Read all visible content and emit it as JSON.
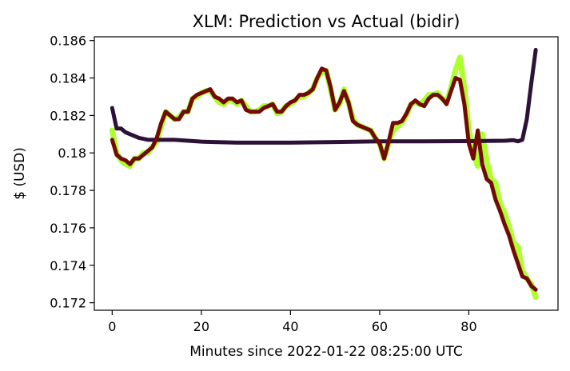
{
  "chart_data": {
    "type": "line",
    "title": "XLM: Prediction vs Actual (bidir)",
    "xlabel": "Minutes since 2022-01-22 08:25:00 UTC",
    "ylabel": "$ (USD)",
    "xlim": [
      -4,
      100
    ],
    "ylim": [
      0.1716,
      0.1862
    ],
    "grid": false,
    "legend": "none",
    "x_ticks": [
      0,
      20,
      40,
      60,
      80
    ],
    "y_ticks": [
      0.172,
      0.174,
      0.176,
      0.178,
      0.18,
      0.182,
      0.184,
      0.186
    ],
    "y_tick_labels": [
      "0.172",
      "0.174",
      "0.176",
      "0.178",
      "0.18",
      "0.182",
      "0.184",
      "0.186"
    ],
    "series": [
      {
        "color": "#adff2f",
        "width": 7,
        "points": [
          [
            0,
            0.1812
          ],
          [
            1,
            0.18
          ],
          [
            2,
            0.1796
          ],
          [
            3,
            0.1794
          ],
          [
            4,
            0.1793
          ],
          [
            5,
            0.1797
          ],
          [
            6,
            0.1797
          ],
          [
            7,
            0.18
          ],
          [
            8,
            0.18
          ],
          [
            9,
            0.1803
          ],
          [
            10,
            0.1806
          ],
          [
            11,
            0.1814
          ],
          [
            12,
            0.1822
          ],
          [
            13,
            0.182
          ],
          [
            14,
            0.1818
          ],
          [
            15,
            0.1819
          ],
          [
            16,
            0.1822
          ],
          [
            17,
            0.1822
          ],
          [
            18,
            0.1829
          ],
          [
            19,
            0.183
          ],
          [
            20,
            0.1832
          ],
          [
            21,
            0.1833
          ],
          [
            22,
            0.1833
          ],
          [
            23,
            0.183
          ],
          [
            24,
            0.1827
          ],
          [
            25,
            0.1826
          ],
          [
            26,
            0.1828
          ],
          [
            27,
            0.1828
          ],
          [
            28,
            0.1826
          ],
          [
            29,
            0.1828
          ],
          [
            30,
            0.1825
          ],
          [
            31,
            0.1822
          ],
          [
            32,
            0.1822
          ],
          [
            33,
            0.1823
          ],
          [
            34,
            0.1825
          ],
          [
            35,
            0.1825
          ],
          [
            36,
            0.1826
          ],
          [
            37,
            0.1821
          ],
          [
            38,
            0.1822
          ],
          [
            39,
            0.1825
          ],
          [
            40,
            0.1826
          ],
          [
            41,
            0.1828
          ],
          [
            42,
            0.183
          ],
          [
            43,
            0.183
          ],
          [
            44,
            0.1832
          ],
          [
            45,
            0.1834
          ],
          [
            46,
            0.184
          ],
          [
            47,
            0.1843
          ],
          [
            48,
            0.1844
          ],
          [
            49,
            0.1834
          ],
          [
            50,
            0.1823
          ],
          [
            51,
            0.1826
          ],
          [
            52,
            0.1834
          ],
          [
            53,
            0.1827
          ],
          [
            54,
            0.1818
          ],
          [
            55,
            0.1815
          ],
          [
            56,
            0.1814
          ],
          [
            57,
            0.1813
          ],
          [
            58,
            0.1812
          ],
          [
            59,
            0.1808
          ],
          [
            60,
            0.1805
          ],
          [
            61,
            0.1797
          ],
          [
            62,
            0.1805
          ],
          [
            63,
            0.1812
          ],
          [
            64,
            0.1814
          ],
          [
            65,
            0.1816
          ],
          [
            66,
            0.182
          ],
          [
            67,
            0.1826
          ],
          [
            68,
            0.1827
          ],
          [
            69,
            0.1826
          ],
          [
            70,
            0.1828
          ],
          [
            71,
            0.1831
          ],
          [
            72,
            0.1831
          ],
          [
            73,
            0.1832
          ],
          [
            74,
            0.1829
          ],
          [
            75,
            0.1827
          ],
          [
            76,
            0.1835
          ],
          [
            77,
            0.1844
          ],
          [
            78,
            0.1851
          ],
          [
            79,
            0.1835
          ],
          [
            80,
            0.1812
          ],
          [
            81,
            0.18
          ],
          [
            82,
            0.1793
          ],
          [
            83,
            0.181
          ],
          [
            84,
            0.1796
          ],
          [
            85,
            0.1786
          ],
          [
            86,
            0.1784
          ],
          [
            87,
            0.1773
          ],
          [
            88,
            0.1768
          ],
          [
            89,
            0.1761
          ],
          [
            90,
            0.1752
          ],
          [
            91,
            0.175
          ],
          [
            92,
            0.1737
          ],
          [
            93,
            0.1733
          ],
          [
            94,
            0.173
          ],
          [
            95,
            0.1723
          ]
        ]
      },
      {
        "color": "#2d1238",
        "width": 5,
        "points": [
          [
            0,
            0.1824
          ],
          [
            1,
            0.1813
          ],
          [
            2,
            0.1813
          ],
          [
            3,
            0.1811
          ],
          [
            4,
            0.181
          ],
          [
            6,
            0.1808
          ],
          [
            8,
            0.1807
          ],
          [
            10,
            0.1807
          ],
          [
            14,
            0.1807
          ],
          [
            20,
            0.1806
          ],
          [
            28,
            0.18055
          ],
          [
            32,
            0.18055
          ],
          [
            40,
            0.18055
          ],
          [
            50,
            0.18058
          ],
          [
            60,
            0.18062
          ],
          [
            70,
            0.18062
          ],
          [
            80,
            0.18063
          ],
          [
            88,
            0.18065
          ],
          [
            90,
            0.18068
          ],
          [
            91,
            0.18062
          ],
          [
            92,
            0.1807
          ],
          [
            93,
            0.1818
          ],
          [
            94,
            0.1837
          ],
          [
            95,
            0.1855
          ]
        ]
      },
      {
        "color": "#720b06",
        "width": 5,
        "points": [
          [
            0,
            0.1807
          ],
          [
            1,
            0.1799
          ],
          [
            2,
            0.1797
          ],
          [
            3,
            0.1796
          ],
          [
            4,
            0.1794
          ],
          [
            5,
            0.1797
          ],
          [
            6,
            0.1797
          ],
          [
            7,
            0.1799
          ],
          [
            8,
            0.1801
          ],
          [
            9,
            0.1803
          ],
          [
            10,
            0.1808
          ],
          [
            11,
            0.1816
          ],
          [
            12,
            0.1822
          ],
          [
            13,
            0.182
          ],
          [
            14,
            0.1818
          ],
          [
            15,
            0.1818
          ],
          [
            16,
            0.1822
          ],
          [
            17,
            0.1822
          ],
          [
            18,
            0.1829
          ],
          [
            19,
            0.1831
          ],
          [
            20,
            0.1832
          ],
          [
            21,
            0.1833
          ],
          [
            22,
            0.1834
          ],
          [
            23,
            0.183
          ],
          [
            24,
            0.1829
          ],
          [
            25,
            0.1827
          ],
          [
            26,
            0.1829
          ],
          [
            27,
            0.1829
          ],
          [
            28,
            0.1827
          ],
          [
            29,
            0.1828
          ],
          [
            30,
            0.1823
          ],
          [
            31,
            0.1822
          ],
          [
            32,
            0.1822
          ],
          [
            33,
            0.1822
          ],
          [
            34,
            0.1824
          ],
          [
            35,
            0.1825
          ],
          [
            36,
            0.1826
          ],
          [
            37,
            0.1822
          ],
          [
            38,
            0.1822
          ],
          [
            39,
            0.1825
          ],
          [
            40,
            0.1827
          ],
          [
            41,
            0.1828
          ],
          [
            42,
            0.1831
          ],
          [
            43,
            0.1831
          ],
          [
            44,
            0.1832
          ],
          [
            45,
            0.1834
          ],
          [
            46,
            0.184
          ],
          [
            47,
            0.1845
          ],
          [
            48,
            0.1844
          ],
          [
            49,
            0.1835
          ],
          [
            50,
            0.1823
          ],
          [
            51,
            0.1827
          ],
          [
            52,
            0.1833
          ],
          [
            53,
            0.1827
          ],
          [
            54,
            0.1817
          ],
          [
            55,
            0.1815
          ],
          [
            56,
            0.1814
          ],
          [
            57,
            0.1813
          ],
          [
            58,
            0.1812
          ],
          [
            59,
            0.1808
          ],
          [
            60,
            0.1805
          ],
          [
            61,
            0.1797
          ],
          [
            62,
            0.1806
          ],
          [
            63,
            0.1816
          ],
          [
            64,
            0.1816
          ],
          [
            65,
            0.1817
          ],
          [
            66,
            0.1821
          ],
          [
            67,
            0.1826
          ],
          [
            68,
            0.1828
          ],
          [
            69,
            0.1826
          ],
          [
            70,
            0.1825
          ],
          [
            71,
            0.1829
          ],
          [
            72,
            0.1831
          ],
          [
            73,
            0.1831
          ],
          [
            74,
            0.1829
          ],
          [
            75,
            0.1826
          ],
          [
            76,
            0.1833
          ],
          [
            77,
            0.184
          ],
          [
            78,
            0.1839
          ],
          [
            79,
            0.1826
          ],
          [
            80,
            0.1805
          ],
          [
            81,
            0.1797
          ],
          [
            82,
            0.1812
          ],
          [
            83,
            0.1794
          ],
          [
            84,
            0.1786
          ],
          [
            85,
            0.1784
          ],
          [
            86,
            0.1775
          ],
          [
            87,
            0.1769
          ],
          [
            88,
            0.1762
          ],
          [
            89,
            0.1756
          ],
          [
            90,
            0.1748
          ],
          [
            91,
            0.1741
          ],
          [
            92,
            0.1734
          ],
          [
            93,
            0.1733
          ],
          [
            94,
            0.1729
          ],
          [
            95,
            0.1727
          ]
        ]
      }
    ]
  }
}
